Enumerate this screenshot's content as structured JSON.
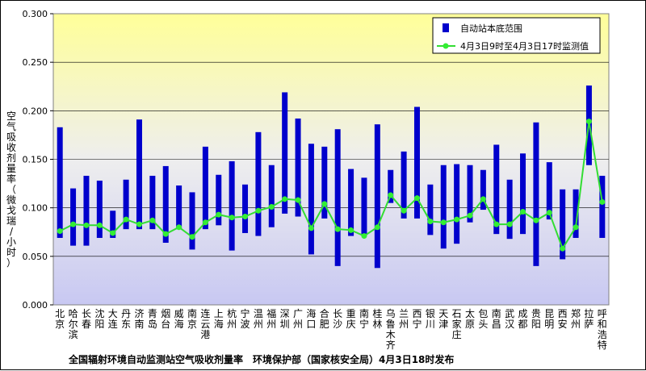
{
  "chart_data": {
    "type": "bar+line",
    "title": "全国辐射环境自动监测站空气吸收剂量率　环境保护部（国家核安全局）4月3日18时发布",
    "ylabel": "空气吸收剂量率（微戈瑞/小时）",
    "ylim": [
      0,
      0.3
    ],
    "yticks": [
      "0.000",
      "0.050",
      "0.100",
      "0.150",
      "0.200",
      "0.250",
      "0.300"
    ],
    "legend": {
      "position": "top-right",
      "range_label": "自动站本底范围",
      "line_label": "4月3日9时至4月3日17时监测值"
    },
    "colors": {
      "bar": "#0000cc",
      "line": "#33dd33",
      "marker": "#33ee33"
    },
    "categories": [
      "北京",
      "哈尔滨",
      "长春",
      "沈阳",
      "大连",
      "丹东",
      "济南",
      "青岛",
      "烟台",
      "威海",
      "南京",
      "连云港",
      "上海",
      "杭州",
      "宁波",
      "温州",
      "福州",
      "深圳",
      "广州",
      "海口",
      "合肥",
      "长沙",
      "重庆",
      "南宁",
      "桂林",
      "乌鲁木齐",
      "兰州",
      "西宁",
      "银川",
      "天津",
      "石家庄",
      "太原",
      "包头",
      "南昌",
      "武汉",
      "成都",
      "贵阳",
      "昆明",
      "西安",
      "郑州",
      "拉萨",
      "呼和浩特"
    ],
    "range_low": [
      0.069,
      0.061,
      0.061,
      0.069,
      0.069,
      0.078,
      0.078,
      0.078,
      0.064,
      0.078,
      0.057,
      0.078,
      0.082,
      0.056,
      0.074,
      0.071,
      0.08,
      0.094,
      0.091,
      0.052,
      0.089,
      0.04,
      0.071,
      0.071,
      0.038,
      0.105,
      0.089,
      0.089,
      0.072,
      0.058,
      0.063,
      0.085,
      0.098,
      0.073,
      0.068,
      0.073,
      0.04,
      0.088,
      0.047,
      0.069,
      0.144,
      0.069
    ],
    "range_high": [
      0.183,
      0.12,
      0.133,
      0.128,
      0.097,
      0.129,
      0.191,
      0.133,
      0.143,
      0.123,
      0.116,
      0.163,
      0.134,
      0.148,
      0.124,
      0.178,
      0.144,
      0.219,
      0.192,
      0.166,
      0.163,
      0.181,
      0.14,
      0.131,
      0.186,
      0.139,
      0.158,
      0.204,
      0.124,
      0.144,
      0.145,
      0.144,
      0.139,
      0.165,
      0.129,
      0.156,
      0.188,
      0.147,
      0.119,
      0.119,
      0.226,
      0.133
    ],
    "values": [
      0.076,
      0.083,
      0.082,
      0.082,
      0.074,
      0.088,
      0.083,
      0.087,
      0.073,
      0.08,
      0.07,
      0.085,
      0.093,
      0.09,
      0.091,
      0.097,
      0.101,
      0.109,
      0.108,
      0.079,
      0.104,
      0.078,
      0.077,
      0.071,
      0.08,
      0.113,
      0.097,
      0.11,
      0.086,
      0.085,
      0.088,
      0.092,
      0.109,
      0.083,
      0.083,
      0.096,
      0.087,
      0.095,
      0.058,
      0.08,
      0.189,
      0.106
    ]
  }
}
